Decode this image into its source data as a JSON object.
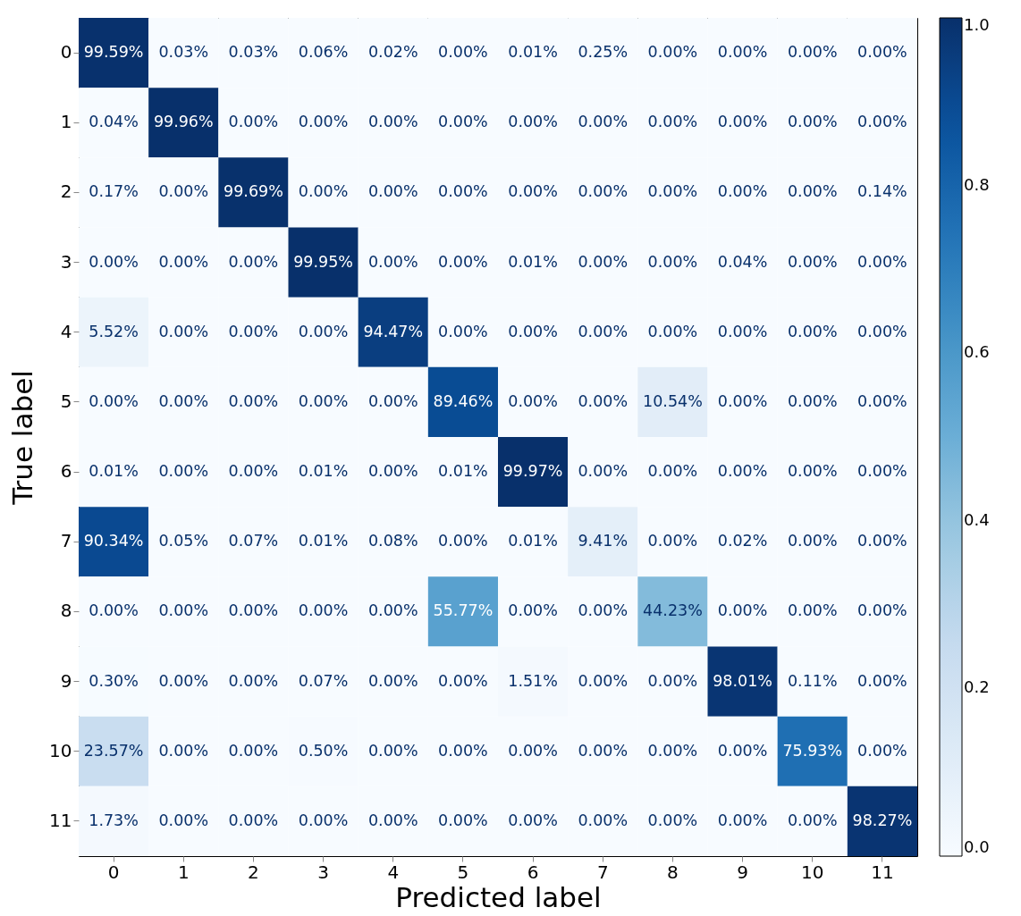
{
  "chart_data": {
    "type": "heatmap",
    "xlabel": "Predicted label",
    "ylabel": "True label",
    "categories": [
      "0",
      "1",
      "2",
      "3",
      "4",
      "5",
      "6",
      "7",
      "8",
      "9",
      "10",
      "11"
    ],
    "y_categories": [
      "0",
      "1",
      "2",
      "3",
      "4",
      "5",
      "6",
      "7",
      "8",
      "9",
      "10",
      "11"
    ],
    "cells": [
      [
        0.9959,
        0.0003,
        0.0003,
        0.0006,
        0.0002,
        0.0,
        0.0001,
        0.0025,
        0.0,
        0.0,
        0.0,
        0.0
      ],
      [
        0.0004,
        0.9996,
        0.0,
        0.0,
        0.0,
        0.0,
        0.0,
        0.0,
        0.0,
        0.0,
        0.0,
        0.0
      ],
      [
        0.0017,
        0.0,
        0.9969,
        0.0,
        0.0,
        0.0,
        0.0,
        0.0,
        0.0,
        0.0,
        0.0,
        0.0014
      ],
      [
        0.0,
        0.0,
        0.0,
        0.9995,
        0.0,
        0.0,
        0.0001,
        0.0,
        0.0,
        0.0004,
        0.0,
        0.0
      ],
      [
        0.0552,
        0.0,
        0.0,
        0.0,
        0.9447,
        0.0,
        0.0,
        0.0,
        0.0,
        0.0,
        0.0,
        0.0
      ],
      [
        0.0,
        0.0,
        0.0,
        0.0,
        0.0,
        0.8946,
        0.0,
        0.0,
        0.1054,
        0.0,
        0.0,
        0.0
      ],
      [
        0.0001,
        0.0,
        0.0,
        0.0001,
        0.0,
        0.0001,
        0.9997,
        0.0,
        0.0,
        0.0,
        0.0,
        0.0
      ],
      [
        0.9034,
        0.0005,
        0.0007,
        0.0001,
        0.0008,
        0.0,
        0.0001,
        0.0941,
        0.0,
        0.0002,
        0.0,
        0.0
      ],
      [
        0.0,
        0.0,
        0.0,
        0.0,
        0.0,
        0.5577,
        0.0,
        0.0,
        0.4423,
        0.0,
        0.0,
        0.0
      ],
      [
        0.003,
        0.0,
        0.0,
        0.0007,
        0.0,
        0.0,
        0.0151,
        0.0,
        0.0,
        0.9801,
        0.0011,
        0.0
      ],
      [
        0.2357,
        0.0,
        0.0,
        0.005,
        0.0,
        0.0,
        0.0,
        0.0,
        0.0,
        0.0,
        0.7593,
        0.0
      ],
      [
        0.0173,
        0.0,
        0.0,
        0.0,
        0.0,
        0.0,
        0.0,
        0.0,
        0.0,
        0.0,
        0.0,
        0.9827
      ]
    ],
    "cell_labels": [
      [
        "99.59%",
        "0.03%",
        "0.03%",
        "0.06%",
        "0.02%",
        "0.00%",
        "0.01%",
        "0.25%",
        "0.00%",
        "0.00%",
        "0.00%",
        "0.00%"
      ],
      [
        "0.04%",
        "99.96%",
        "0.00%",
        "0.00%",
        "0.00%",
        "0.00%",
        "0.00%",
        "0.00%",
        "0.00%",
        "0.00%",
        "0.00%",
        "0.00%"
      ],
      [
        "0.17%",
        "0.00%",
        "99.69%",
        "0.00%",
        "0.00%",
        "0.00%",
        "0.00%",
        "0.00%",
        "0.00%",
        "0.00%",
        "0.00%",
        "0.14%"
      ],
      [
        "0.00%",
        "0.00%",
        "0.00%",
        "99.95%",
        "0.00%",
        "0.00%",
        "0.01%",
        "0.00%",
        "0.00%",
        "0.04%",
        "0.00%",
        "0.00%"
      ],
      [
        "5.52%",
        "0.00%",
        "0.00%",
        "0.00%",
        "94.47%",
        "0.00%",
        "0.00%",
        "0.00%",
        "0.00%",
        "0.00%",
        "0.00%",
        "0.00%"
      ],
      [
        "0.00%",
        "0.00%",
        "0.00%",
        "0.00%",
        "0.00%",
        "89.46%",
        "0.00%",
        "0.00%",
        "10.54%",
        "0.00%",
        "0.00%",
        "0.00%"
      ],
      [
        "0.01%",
        "0.00%",
        "0.00%",
        "0.01%",
        "0.00%",
        "0.01%",
        "99.97%",
        "0.00%",
        "0.00%",
        "0.00%",
        "0.00%",
        "0.00%"
      ],
      [
        "90.34%",
        "0.05%",
        "0.07%",
        "0.01%",
        "0.08%",
        "0.00%",
        "0.01%",
        "9.41%",
        "0.00%",
        "0.02%",
        "0.00%",
        "0.00%"
      ],
      [
        "0.00%",
        "0.00%",
        "0.00%",
        "0.00%",
        "0.00%",
        "55.77%",
        "0.00%",
        "0.00%",
        "44.23%",
        "0.00%",
        "0.00%",
        "0.00%"
      ],
      [
        "0.30%",
        "0.00%",
        "0.00%",
        "0.07%",
        "0.00%",
        "0.00%",
        "1.51%",
        "0.00%",
        "0.00%",
        "98.01%",
        "0.11%",
        "0.00%"
      ],
      [
        "23.57%",
        "0.00%",
        "0.00%",
        "0.50%",
        "0.00%",
        "0.00%",
        "0.00%",
        "0.00%",
        "0.00%",
        "0.00%",
        "75.93%",
        "0.00%"
      ],
      [
        "1.73%",
        "0.00%",
        "0.00%",
        "0.00%",
        "0.00%",
        "0.00%",
        "0.00%",
        "0.00%",
        "0.00%",
        "0.00%",
        "0.00%",
        "98.27%"
      ]
    ],
    "clim": [
      0,
      1
    ],
    "cticks": [
      {
        "value": 0,
        "label": "0.0"
      },
      {
        "value": 0.2,
        "label": "0.2"
      },
      {
        "value": 0.4,
        "label": "0.4"
      },
      {
        "value": 0.6,
        "label": "0.6"
      },
      {
        "value": 0.8,
        "label": "0.8"
      },
      {
        "value": 1,
        "label": "1.0"
      }
    ]
  }
}
